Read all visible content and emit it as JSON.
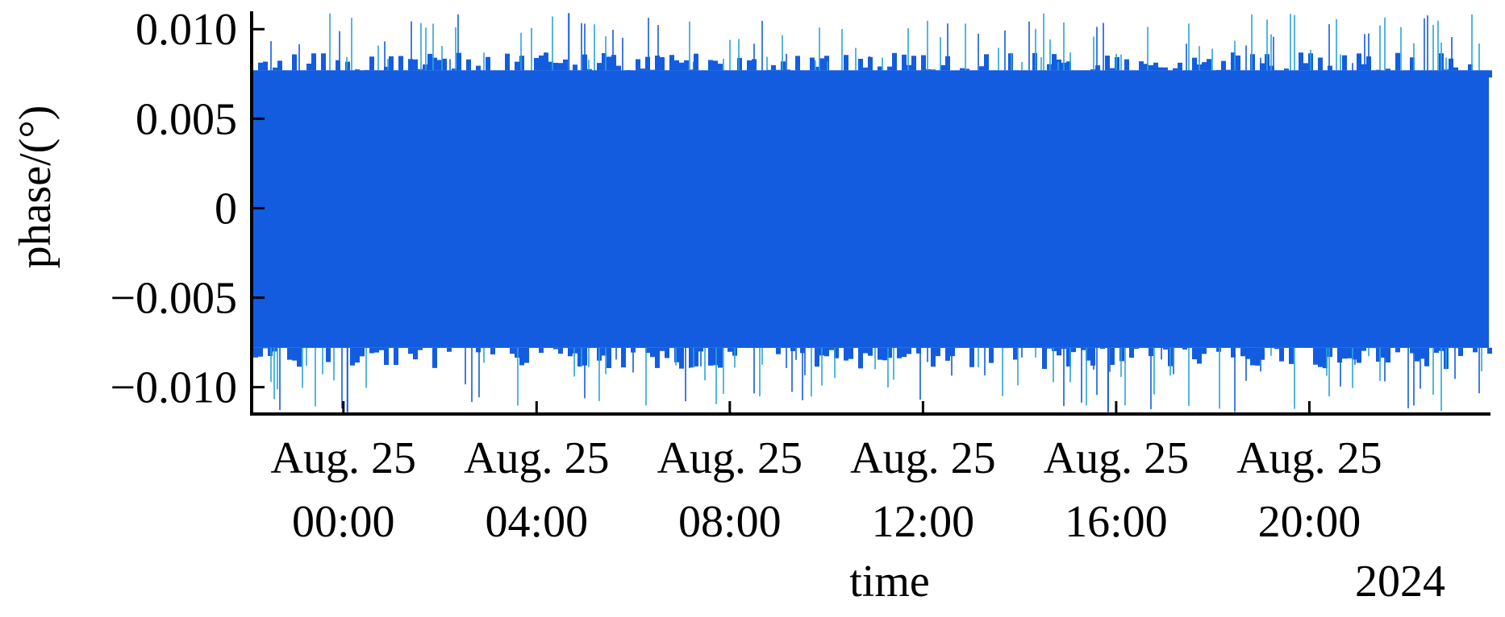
{
  "chart_data": {
    "type": "line",
    "title": "",
    "xlabel": "time",
    "ylabel": "phase/(°)",
    "x_start": "2024-08-24 22:06",
    "x_end": "2024-08-25 23:45",
    "xlim": [
      "2024-08-24 22:06",
      "2024-08-25 23:45"
    ],
    "ylim": [
      -0.0115,
      0.011
    ],
    "y_ticks": [
      {
        "value": 0.01,
        "label": "0.010"
      },
      {
        "value": 0.005,
        "label": "0.005"
      },
      {
        "value": 0,
        "label": "0"
      },
      {
        "value": -0.005,
        "label": "−0.005"
      },
      {
        "value": -0.01,
        "label": "−0.010"
      }
    ],
    "x_ticks": [
      {
        "value": "2024-08-25 00:00",
        "line1": "Aug. 25",
        "line2": "00:00"
      },
      {
        "value": "2024-08-25 04:00",
        "line1": "Aug. 25",
        "line2": "04:00"
      },
      {
        "value": "2024-08-25 08:00",
        "line1": "Aug. 25",
        "line2": "08:00"
      },
      {
        "value": "2024-08-25 12:00",
        "line1": "Aug. 25",
        "line2": "12:00"
      },
      {
        "value": "2024-08-25 16:00",
        "line1": "Aug. 25",
        "line2": "16:00"
      },
      {
        "value": "2024-08-25 20:00",
        "line1": "Aug. 25",
        "line2": "20:00"
      }
    ],
    "x_offset_label": "2024",
    "series": [
      {
        "color": "#135ce0",
        "accent_color": "#2aa4d8",
        "dense_band": [
          -0.0078,
          0.0077
        ],
        "min": -0.0114,
        "max": 0.0109
      }
    ],
    "grid": false,
    "legend": "none"
  }
}
